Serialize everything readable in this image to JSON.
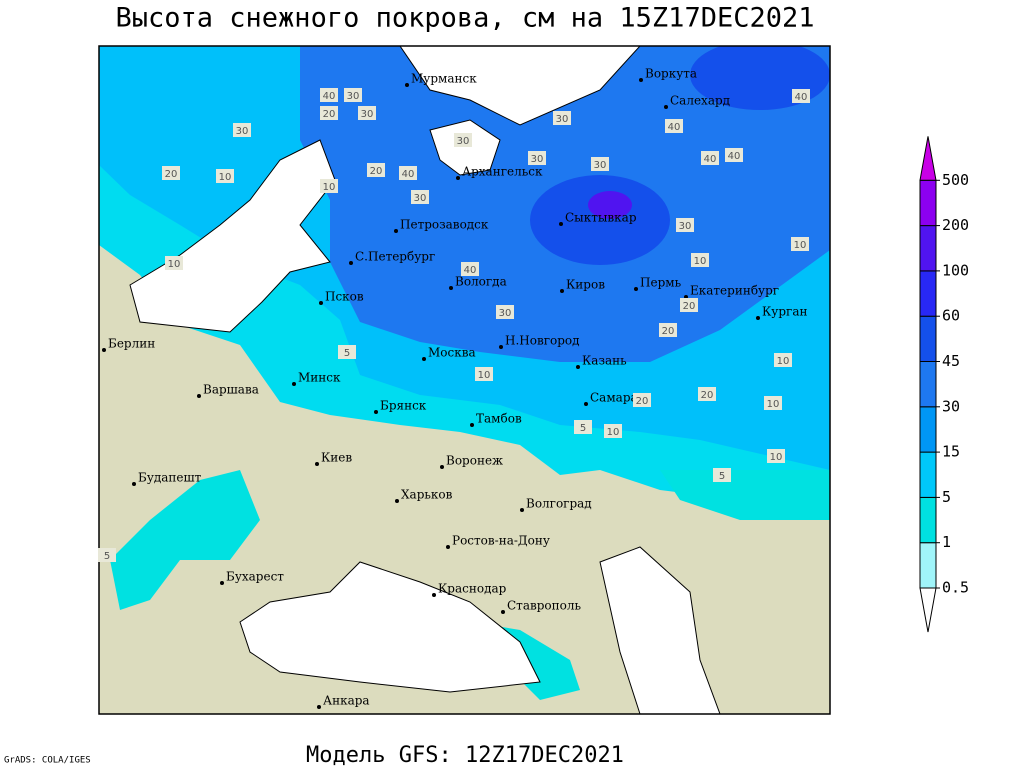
{
  "title": "Высота снежного покрова, см на 15Z17DEC2021",
  "subtitle": "Модель GFS: 12Z17DEC2021",
  "credit": "GrADS: COLA/IGES",
  "cities": [
    "Мурманск",
    "Воркута",
    "Салехард",
    "Архангельск",
    "Петрозаводск",
    "Сыктывкар",
    "С.Петербург",
    "Вологда",
    "Киров",
    "Пермь",
    "Екатеринбург",
    "Курган",
    "Псков",
    "Берлин",
    "Н.Новгород",
    "Москва",
    "Казань",
    "Минск",
    "Варшава",
    "Самара",
    "Брянск",
    "Тамбов",
    "Воронеж",
    "Киев",
    "Будапешт",
    "Харьков",
    "Волгоград",
    "Ростов-на-Дону",
    "Бухарест",
    "Краснодар",
    "Ставрополь",
    "Анкара"
  ],
  "contour_labels": [
    40,
    30,
    20,
    30,
    10,
    20,
    10,
    30,
    10,
    40,
    30,
    20,
    30,
    30,
    40,
    40,
    40,
    40,
    30,
    30,
    10,
    10,
    40,
    30,
    20,
    30,
    20,
    10,
    20,
    10,
    5,
    10,
    20,
    10,
    5,
    10,
    5,
    5
  ],
  "legend": {
    "levels": [
      0.5,
      1,
      5,
      15,
      30,
      45,
      60,
      100,
      200,
      500
    ],
    "colors": [
      "#ffffff",
      "#a0f5fa",
      "#00e1e1",
      "#00c8fa",
      "#0096f5",
      "#1e78f0",
      "#1450eb",
      "#2828f5",
      "#5014f0",
      "#8c00f0",
      "#c800e6"
    ]
  }
}
